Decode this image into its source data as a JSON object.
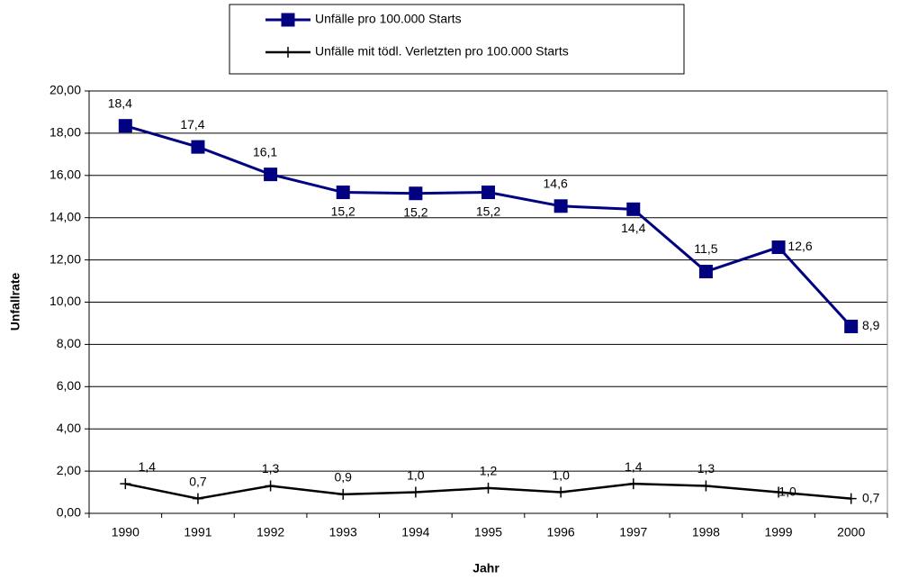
{
  "chart_data": {
    "type": "line",
    "x_label": "Jahr",
    "y_label": "Unfallrate",
    "categories": [
      "1990",
      "1991",
      "1992",
      "1993",
      "1994",
      "1995",
      "1996",
      "1997",
      "1998",
      "1999",
      "2000"
    ],
    "series": [
      {
        "name": "Unfälle pro 100.000 Starts",
        "color": "#000080",
        "marker": "square",
        "values": [
          18.35,
          17.35,
          16.05,
          15.2,
          15.15,
          15.2,
          14.55,
          14.4,
          11.45,
          12.6,
          8.85
        ],
        "value_labels": [
          "18,4",
          "17,4",
          "16,1",
          "15,2",
          "15,2",
          "15,2",
          "14,6",
          "14,4",
          "11,5",
          "12,6",
          "8,9"
        ]
      },
      {
        "name": "Unfälle mit tödl. Verletzten pro 100.000 Starts",
        "color": "#000000",
        "marker": "plus",
        "values": [
          1.4,
          0.7,
          1.3,
          0.9,
          1.0,
          1.2,
          1.0,
          1.4,
          1.3,
          1.0,
          0.7
        ],
        "value_labels": [
          "1,4",
          "0,7",
          "1,3",
          "0,9",
          "1,0",
          "1,2",
          "1,0",
          "1,4",
          "1,3",
          "1,0",
          "0,7"
        ]
      }
    ],
    "ylim": [
      0,
      20
    ],
    "yticks": [
      {
        "value": 0,
        "label": "0,00"
      },
      {
        "value": 2,
        "label": "2,00"
      },
      {
        "value": 4,
        "label": "4,00"
      },
      {
        "value": 6,
        "label": "6,00"
      },
      {
        "value": 8,
        "label": "8,00"
      },
      {
        "value": 10,
        "label": "10,00"
      },
      {
        "value": 12,
        "label": "12,00"
      },
      {
        "value": 14,
        "label": "14,00"
      },
      {
        "value": 16,
        "label": "16,00"
      },
      {
        "value": 18,
        "label": "18,00"
      },
      {
        "value": 20,
        "label": "20,00"
      }
    ],
    "grid": true,
    "legend": "top"
  }
}
